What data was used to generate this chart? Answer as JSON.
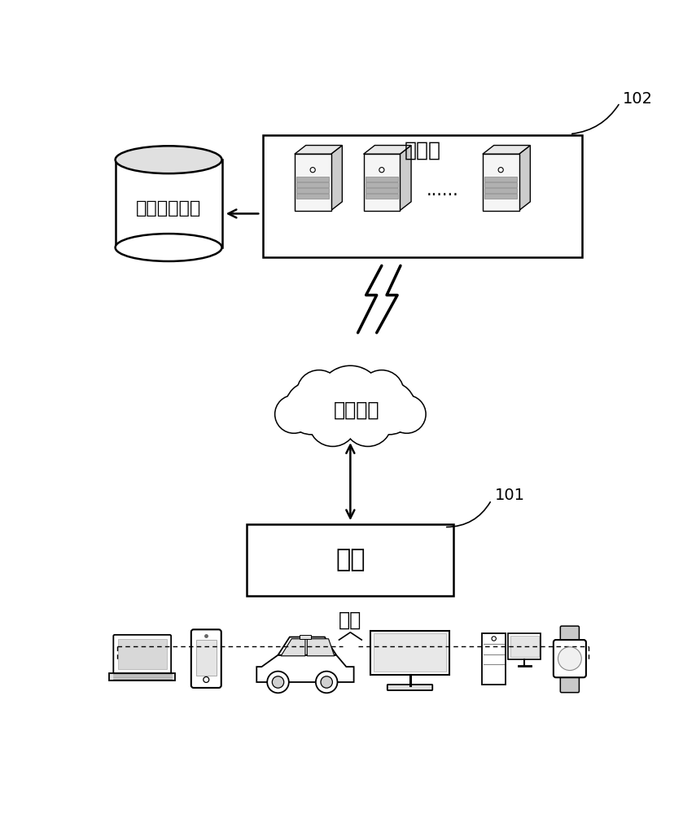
{
  "bg_color": "#ffffff",
  "text_color": "#000000",
  "label_102": "102",
  "label_101": "101",
  "server_label": "服务器",
  "database_label": "数据存储系统",
  "network_label": "通信网络",
  "terminal_label": "终端",
  "example_label": "例如",
  "dots_label": "......",
  "font_size_main": 16,
  "font_size_label": 13
}
